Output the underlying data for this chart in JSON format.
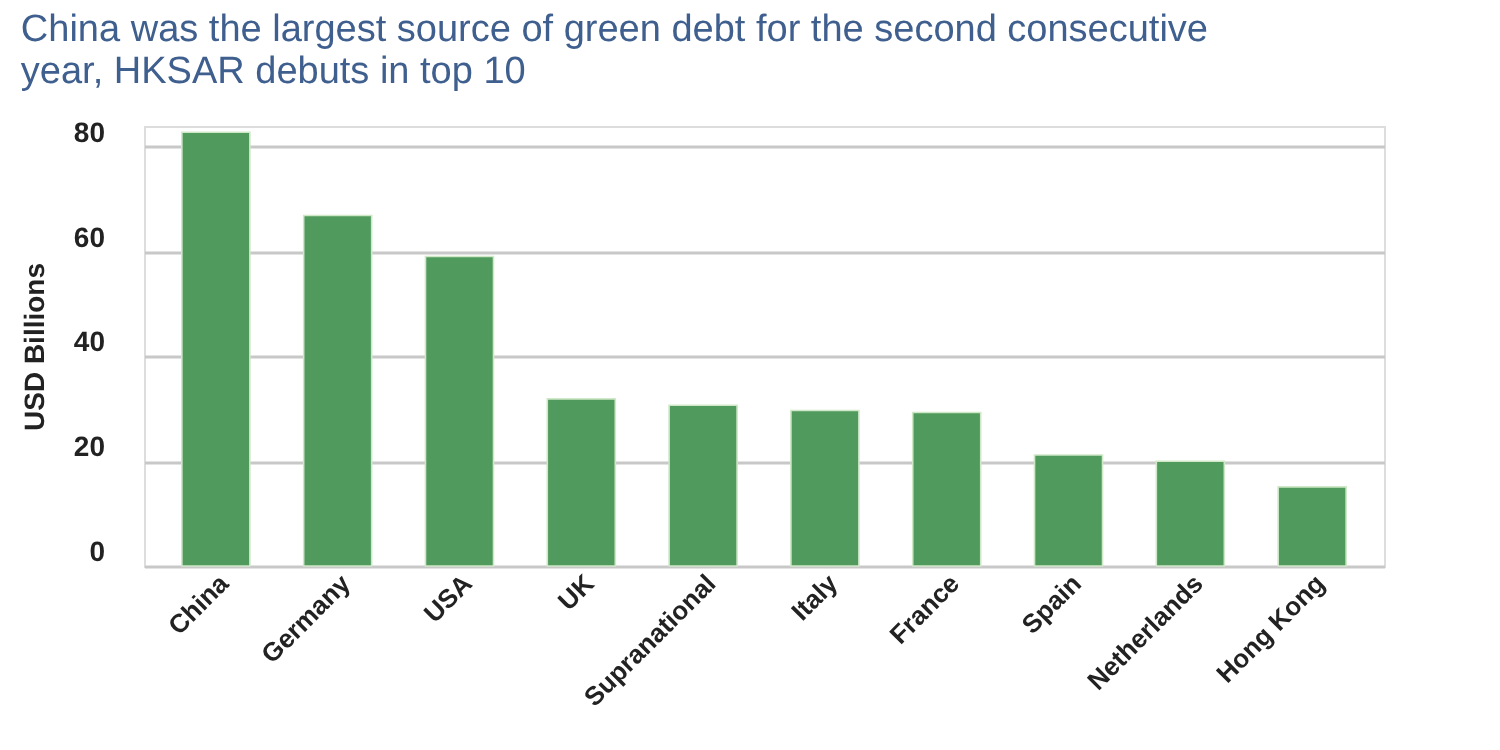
{
  "chart_data": {
    "type": "bar",
    "title": [
      "China was the largest source of green debt for the second consecutive",
      "year, HKSAR debuts in top 10"
    ],
    "ylabel": "USD Billions",
    "categories": [
      "China",
      "Germany",
      "USA",
      "UK",
      "Supranational",
      "Italy",
      "France",
      "Spain",
      "Netherlands",
      "Hong Kong"
    ],
    "values": [
      82.8,
      66.9,
      59.1,
      31.9,
      30.7,
      29.7,
      29.3,
      21.2,
      20.0,
      15.1
    ],
    "color": "#4f9a5c",
    "ylim": [
      0,
      84
    ],
    "yticks": [
      0,
      20,
      40,
      60,
      80
    ],
    "grid": "y"
  }
}
